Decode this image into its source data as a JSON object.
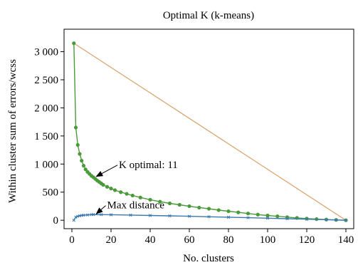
{
  "chart_data": {
    "type": "line",
    "title": "Optimal K (k-means)",
    "xlabel": "No. clusters",
    "ylabel": "Within cluster sum of errors/wcss",
    "xlim": [
      -4,
      144
    ],
    "ylim": [
      -150,
      3400
    ],
    "xticks": [
      0,
      20,
      40,
      60,
      80,
      100,
      120,
      140
    ],
    "yticks": [
      0,
      500,
      1000,
      1500,
      2000,
      2500,
      3000
    ],
    "ytick_labels": [
      "0",
      "500",
      "1 000",
      "1 500",
      "2 000",
      "2 500",
      "3 000"
    ],
    "grid": false,
    "series": [
      {
        "role": "wcss",
        "color": "#4a9a3a",
        "marker": "circle",
        "x": [
          1,
          2,
          3,
          4,
          5,
          6,
          7,
          8,
          9,
          10,
          11,
          12,
          13,
          14,
          15,
          16,
          18,
          20,
          22,
          25,
          28,
          31,
          35,
          40,
          45,
          50,
          55,
          60,
          65,
          70,
          75,
          80,
          85,
          90,
          95,
          100,
          105,
          110,
          115,
          120,
          125,
          130,
          135,
          140
        ],
        "y": [
          3150,
          1650,
          1340,
          1180,
          1060,
          970,
          905,
          860,
          825,
          790,
          765,
          735,
          705,
          680,
          655,
          630,
          595,
          565,
          535,
          500,
          470,
          440,
          405,
          365,
          330,
          300,
          275,
          250,
          225,
          205,
          180,
          160,
          140,
          120,
          100,
          85,
          70,
          55,
          42,
          30,
          20,
          12,
          6,
          0
        ]
      },
      {
        "role": "distance",
        "color": "#3a78b0",
        "marker": "x",
        "x": [
          1,
          2,
          3,
          4,
          5,
          6,
          8,
          10,
          11,
          15,
          20,
          30,
          40,
          50,
          60,
          70,
          80,
          90,
          100,
          110,
          120,
          130,
          135,
          140
        ],
        "y": [
          0,
          55,
          70,
          80,
          86,
          90,
          95,
          100,
          101,
          100,
          98,
          92,
          85,
          78,
          70,
          62,
          54,
          45,
          36,
          27,
          18,
          10,
          5,
          0
        ]
      },
      {
        "role": "reference-line",
        "color": "#d9a06a",
        "marker": "none",
        "x": [
          1,
          140
        ],
        "y": [
          3150,
          0
        ]
      }
    ],
    "annotations": [
      {
        "text": "K optimal: 11",
        "point": [
          11,
          765
        ],
        "text_at": [
          24,
          930
        ]
      },
      {
        "text": "Max distance",
        "point": [
          11,
          101
        ],
        "text_at": [
          18,
          210
        ]
      }
    ]
  }
}
